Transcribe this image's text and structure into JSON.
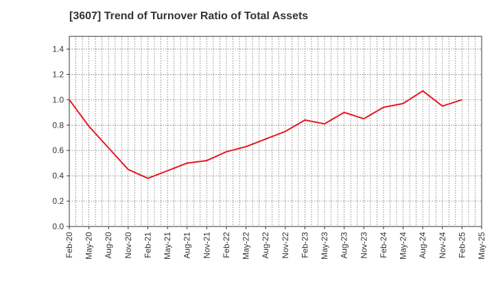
{
  "chart_data": {
    "type": "line",
    "title": "[3607]  Trend of Turnover Ratio of Total Assets",
    "xlabel": "",
    "ylabel": "",
    "ylim": [
      0,
      1.5
    ],
    "y_ticks": [
      "0.0",
      "0.2",
      "0.4",
      "0.6",
      "0.8",
      "1.0",
      "1.2",
      "1.4"
    ],
    "x_tick_labels": [
      "Feb-20",
      "May-20",
      "Aug-20",
      "Nov-20",
      "Feb-21",
      "May-21",
      "Aug-21",
      "Nov-21",
      "Feb-22",
      "May-22",
      "Aug-22",
      "Nov-22",
      "Feb-23",
      "May-23",
      "Aug-23",
      "Nov-23",
      "Feb-24",
      "May-24",
      "Aug-24",
      "Nov-24",
      "Feb-25",
      "May-25"
    ],
    "grid": true,
    "grid_style": "dotted",
    "series": [
      {
        "color": "#e8141c",
        "x": [
          "Feb-20",
          "May-20",
          "Aug-20",
          "Nov-20",
          "Feb-21",
          "May-21",
          "Aug-21",
          "Nov-21",
          "Feb-22",
          "May-22",
          "Aug-22",
          "Nov-22",
          "Feb-23",
          "May-23",
          "Aug-23",
          "Nov-23",
          "Feb-24",
          "May-24",
          "Aug-24",
          "Nov-24",
          "Feb-25"
        ],
        "values": [
          1.0,
          0.79,
          0.62,
          0.45,
          0.38,
          0.44,
          0.5,
          0.52,
          0.59,
          0.63,
          0.69,
          0.75,
          0.84,
          0.81,
          0.9,
          0.85,
          0.94,
          0.97,
          1.07,
          0.95,
          1.0
        ]
      }
    ]
  }
}
